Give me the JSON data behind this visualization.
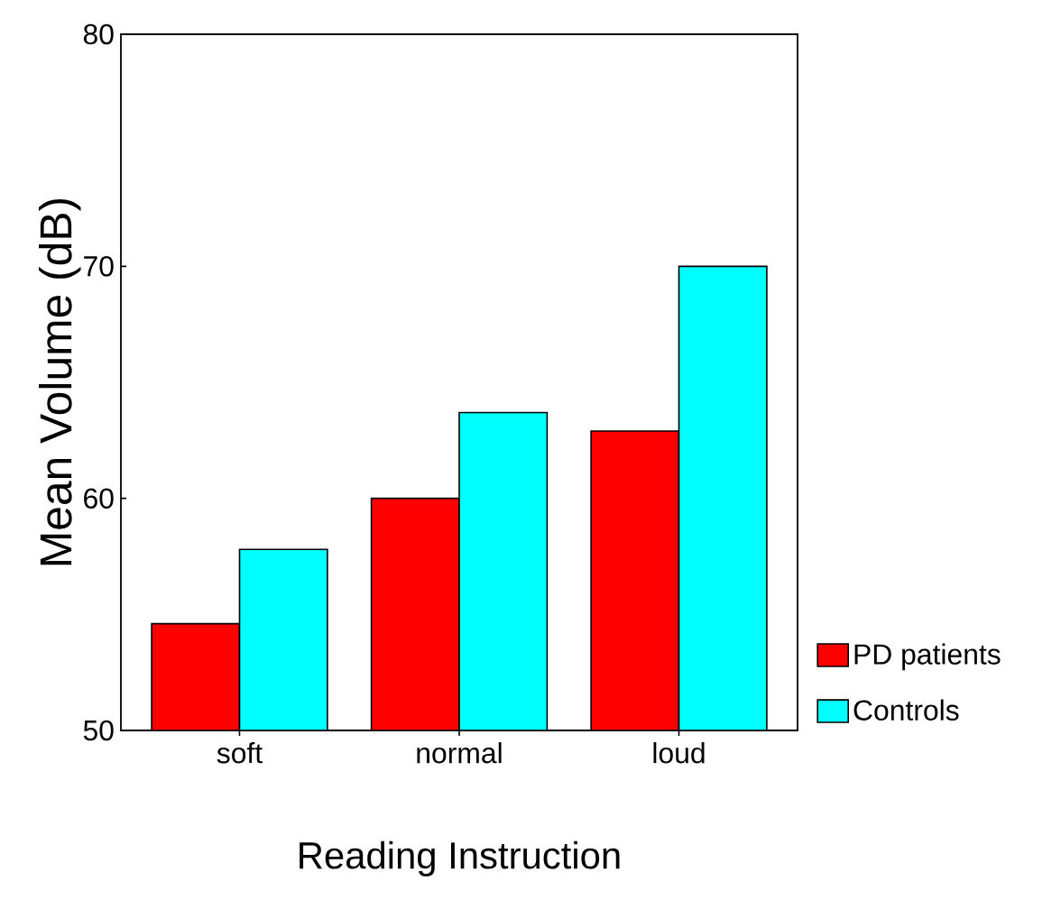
{
  "chart_data": {
    "type": "bar",
    "xlabel": "Reading Instruction",
    "ylabel": "Mean Volume (dB)",
    "categories": [
      "soft",
      "normal",
      "loud"
    ],
    "series": [
      {
        "name": "PD patients",
        "color": "#ff0000",
        "values": [
          54.6,
          60.0,
          62.9
        ]
      },
      {
        "name": "Controls",
        "color": "#00ffff",
        "values": [
          57.8,
          63.7,
          70.0
        ]
      }
    ],
    "ylim": [
      50,
      80
    ],
    "yticks": [
      50,
      60,
      70,
      80
    ],
    "grid": false,
    "legend": "bottom right"
  }
}
